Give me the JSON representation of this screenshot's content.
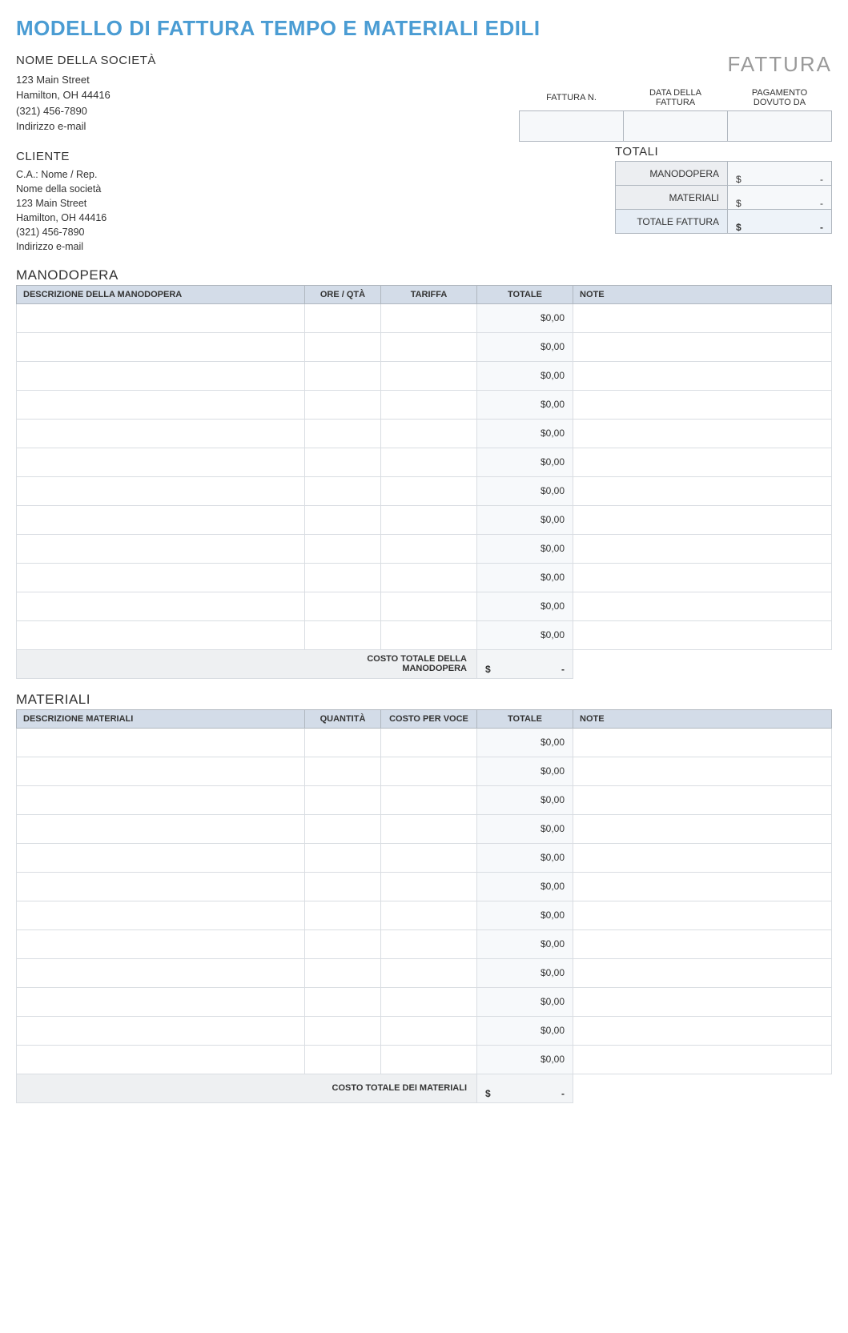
{
  "title": "MODELLO DI FATTURA TEMPO E MATERIALI EDILI",
  "fattura_label": "FATTURA",
  "company": {
    "name": "NOME DELLA SOCIETÀ",
    "street": "123 Main Street",
    "city": "Hamilton, OH 44416",
    "phone": "(321) 456-7890",
    "email": "Indirizzo e-mail"
  },
  "invoice_meta": {
    "headers": {
      "number": "FATTURA N.",
      "date": "DATA DELLA FATTURA",
      "due": "PAGAMENTO DOVUTO DA"
    },
    "values": {
      "number": "",
      "date": "",
      "due": ""
    }
  },
  "client": {
    "heading": "CLIENTE",
    "attn": "C.A.: Nome / Rep.",
    "company": "Nome della società",
    "street": "123 Main Street",
    "city": "Hamilton, OH 44416",
    "phone": "(321) 456-7890",
    "email": "Indirizzo e-mail"
  },
  "totals": {
    "heading": "TOTALI",
    "currency": "$",
    "rows": {
      "labor": {
        "label": "MANODOPERA",
        "value": "-"
      },
      "material": {
        "label": "MATERIALI",
        "value": "-"
      },
      "grand": {
        "label": "TOTALE FATTURA",
        "value": "-"
      }
    }
  },
  "labor": {
    "heading": "MANODOPERA",
    "columns": {
      "desc": "DESCRIZIONE DELLA MANODOPERA",
      "qty": "ORE / QTÀ",
      "rate": "TARIFFA",
      "total": "TOTALE",
      "note": "NOTE"
    },
    "rows": [
      {
        "desc": "",
        "qty": "",
        "rate": "",
        "total": "$0,00",
        "note": ""
      },
      {
        "desc": "",
        "qty": "",
        "rate": "",
        "total": "$0,00",
        "note": ""
      },
      {
        "desc": "",
        "qty": "",
        "rate": "",
        "total": "$0,00",
        "note": ""
      },
      {
        "desc": "",
        "qty": "",
        "rate": "",
        "total": "$0,00",
        "note": ""
      },
      {
        "desc": "",
        "qty": "",
        "rate": "",
        "total": "$0,00",
        "note": ""
      },
      {
        "desc": "",
        "qty": "",
        "rate": "",
        "total": "$0,00",
        "note": ""
      },
      {
        "desc": "",
        "qty": "",
        "rate": "",
        "total": "$0,00",
        "note": ""
      },
      {
        "desc": "",
        "qty": "",
        "rate": "",
        "total": "$0,00",
        "note": ""
      },
      {
        "desc": "",
        "qty": "",
        "rate": "",
        "total": "$0,00",
        "note": ""
      },
      {
        "desc": "",
        "qty": "",
        "rate": "",
        "total": "$0,00",
        "note": ""
      },
      {
        "desc": "",
        "qty": "",
        "rate": "",
        "total": "$0,00",
        "note": ""
      },
      {
        "desc": "",
        "qty": "",
        "rate": "",
        "total": "$0,00",
        "note": ""
      }
    ],
    "subtotal": {
      "label": "COSTO TOTALE DELLA MANODOPERA",
      "currency": "$",
      "value": "-"
    }
  },
  "materials": {
    "heading": "MATERIALI",
    "columns": {
      "desc": "DESCRIZIONE MATERIALI",
      "qty": "QUANTITÀ",
      "rate": "COSTO PER VOCE",
      "total": "TOTALE",
      "note": "NOTE"
    },
    "rows": [
      {
        "desc": "",
        "qty": "",
        "rate": "",
        "total": "$0,00",
        "note": ""
      },
      {
        "desc": "",
        "qty": "",
        "rate": "",
        "total": "$0,00",
        "note": ""
      },
      {
        "desc": "",
        "qty": "",
        "rate": "",
        "total": "$0,00",
        "note": ""
      },
      {
        "desc": "",
        "qty": "",
        "rate": "",
        "total": "$0,00",
        "note": ""
      },
      {
        "desc": "",
        "qty": "",
        "rate": "",
        "total": "$0,00",
        "note": ""
      },
      {
        "desc": "",
        "qty": "",
        "rate": "",
        "total": "$0,00",
        "note": ""
      },
      {
        "desc": "",
        "qty": "",
        "rate": "",
        "total": "$0,00",
        "note": ""
      },
      {
        "desc": "",
        "qty": "",
        "rate": "",
        "total": "$0,00",
        "note": ""
      },
      {
        "desc": "",
        "qty": "",
        "rate": "",
        "total": "$0,00",
        "note": ""
      },
      {
        "desc": "",
        "qty": "",
        "rate": "",
        "total": "$0,00",
        "note": ""
      },
      {
        "desc": "",
        "qty": "",
        "rate": "",
        "total": "$0,00",
        "note": ""
      },
      {
        "desc": "",
        "qty": "",
        "rate": "",
        "total": "$0,00",
        "note": ""
      }
    ],
    "subtotal": {
      "label": "COSTO TOTALE DEI MATERIALI",
      "currency": "$",
      "value": "-"
    }
  },
  "colors": {
    "title": "#4a9cd3",
    "header_bg": "#d3dce8",
    "alt_bg": "#f7f9fb",
    "border": "#b0b7bf"
  }
}
